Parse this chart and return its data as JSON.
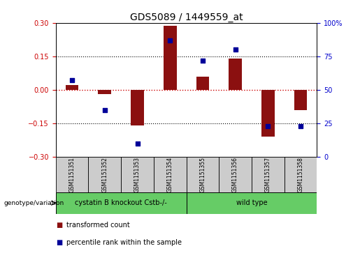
{
  "title": "GDS5089 / 1449559_at",
  "samples": [
    "GSM1151351",
    "GSM1151352",
    "GSM1151353",
    "GSM1151354",
    "GSM1151355",
    "GSM1151356",
    "GSM1151357",
    "GSM1151358"
  ],
  "transformed_count": [
    0.02,
    -0.02,
    -0.16,
    0.285,
    0.06,
    0.14,
    -0.21,
    -0.09
  ],
  "percentile_rank": [
    57,
    35,
    10,
    87,
    72,
    80,
    23,
    23
  ],
  "ylim_left": [
    -0.3,
    0.3
  ],
  "ylim_right": [
    0,
    100
  ],
  "yticks_left": [
    -0.3,
    -0.15,
    0,
    0.15,
    0.3
  ],
  "yticks_right": [
    0,
    25,
    50,
    75,
    100
  ],
  "hlines": [
    0.15,
    -0.15
  ],
  "bar_color": "#8B1010",
  "dot_color": "#000099",
  "zero_line_color": "#CC0000",
  "left_tick_color": "#CC0000",
  "right_tick_color": "#0000CC",
  "groups": [
    {
      "label": "cystatin B knockout Cstb-/-",
      "start": 0,
      "end": 3,
      "color": "#66CC66"
    },
    {
      "label": "wild type",
      "start": 4,
      "end": 7,
      "color": "#66CC66"
    }
  ],
  "genotype_label": "genotype/variation",
  "legend_items": [
    {
      "color": "#8B1010",
      "label": "transformed count"
    },
    {
      "color": "#000099",
      "label": "percentile rank within the sample"
    }
  ],
  "background_color": "#ffffff",
  "cell_bg_color": "#cccccc",
  "bar_width": 0.4,
  "dot_size": 22,
  "title_fontsize": 10,
  "tick_fontsize": 7,
  "sample_fontsize": 5.5,
  "group_fontsize": 7,
  "legend_fontsize": 7
}
